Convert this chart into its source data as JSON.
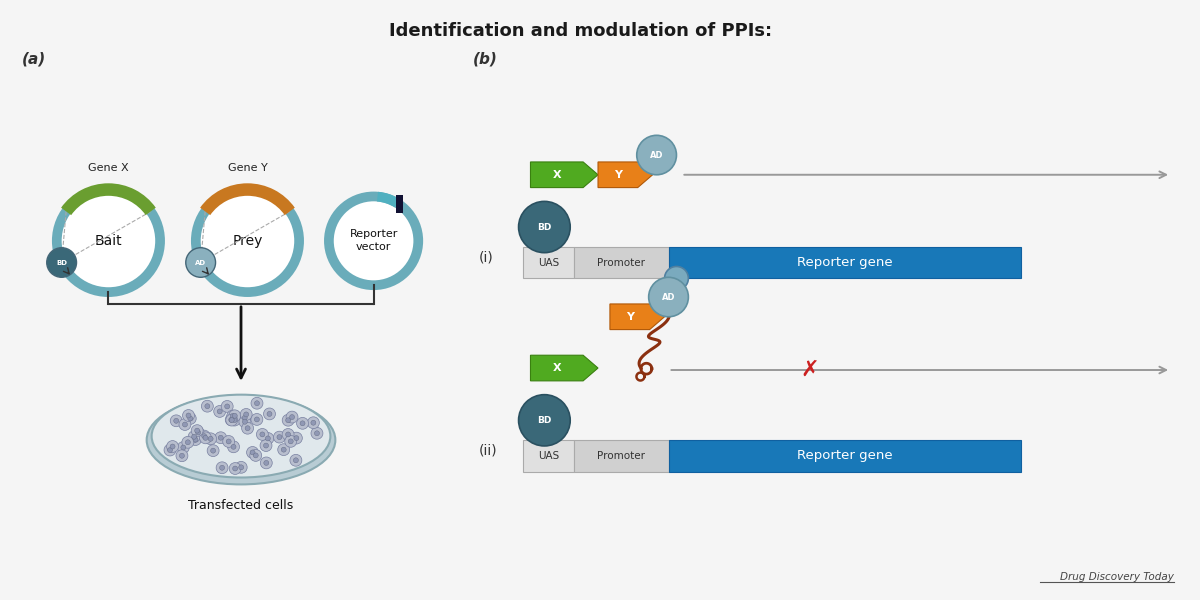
{
  "title": "Identification and modulation of PPIs:",
  "title_fontsize": 13,
  "background_color": "#f5f5f5",
  "label_a": "(a)",
  "label_b": "(b)",
  "label_i": "(i)",
  "label_ii": "(ii)",
  "circle_fc": "#ffffff",
  "circle_ec": "#6aacba",
  "circle_lw": 7,
  "gene_x_color": "#6a9e30",
  "gene_y_color": "#c87820",
  "bd_dot_color": "#3a6878",
  "ad_dot_color": "#8ab0be",
  "green_block_color": "#50aa20",
  "orange_block_color": "#e88018",
  "blue_block_color": "#1878b8",
  "uas_fc": "#e0e0e0",
  "uas_ec": "#aaaaaa",
  "promoter_fc": "#d0d0d0",
  "promoter_ec": "#aaaaaa",
  "arrow_color": "#999999",
  "red_x_color": "#cc2020",
  "rna_color": "#8b3010",
  "ribo_color": "#7aaabe",
  "footer_text": "Drug Discovery Today",
  "bait_label": "Bait",
  "prey_label": "Prey",
  "reporter_vector_label": "Reporter\nvector",
  "transfected_label": "Transfected cells",
  "gene_x_label": "Gene X",
  "gene_y_label": "Gene Y",
  "reporter_gene_label": "Reporter gene",
  "uas_label": "UAS",
  "promoter_label": "Promoter",
  "x_label": "X",
  "y_label": "Y",
  "bd_label": "BD",
  "ad_label": "AD"
}
